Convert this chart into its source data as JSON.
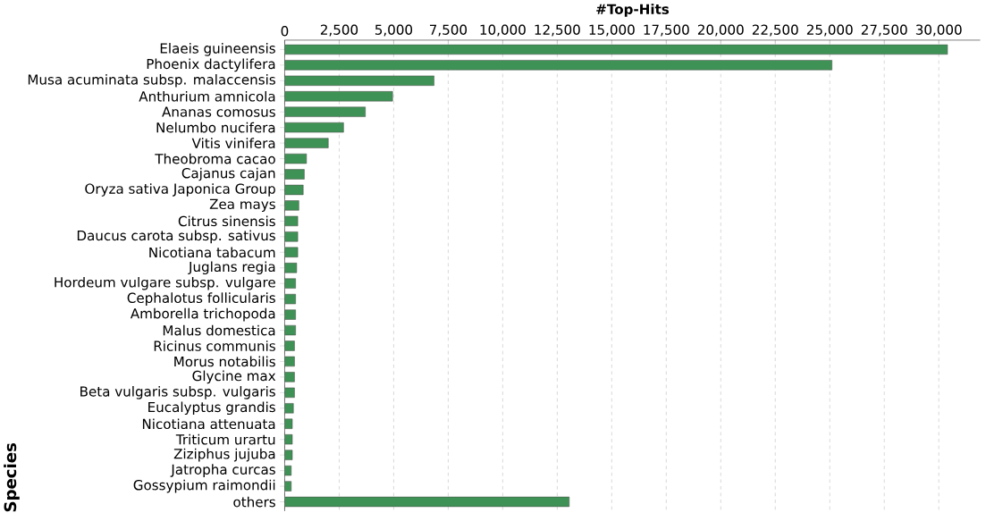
{
  "chart_data": {
    "type": "bar",
    "orientation": "horizontal",
    "xlabel": "#Top-Hits",
    "ylabel": "Species",
    "categories": [
      "Elaeis guineensis",
      "Phoenix dactylifera",
      "Musa acuminata subsp. malaccensis",
      "Anthurium amnicola",
      "Ananas comosus",
      "Nelumbo nucifera",
      "Vitis vinifera",
      "Theobroma cacao",
      "Cajanus cajan",
      "Oryza sativa Japonica Group",
      "Zea mays",
      "Citrus sinensis",
      "Daucus carota subsp. sativus",
      "Nicotiana tabacum",
      "Juglans regia",
      "Hordeum vulgare subsp. vulgare",
      "Cephalotus follicularis",
      "Amborella trichopoda",
      "Malus domestica",
      "Ricinus communis",
      "Morus notabilis",
      "Glycine max",
      "Beta vulgaris subsp. vulgaris",
      "Eucalyptus grandis",
      "Nicotiana attenuata",
      "Triticum urartu",
      "Ziziphus jujuba",
      "Jatropha curcas",
      "Gossypium raimondii",
      "others"
    ],
    "values": [
      30400,
      25100,
      6850,
      4950,
      3700,
      2700,
      2000,
      1000,
      900,
      850,
      650,
      600,
      600,
      600,
      550,
      500,
      500,
      500,
      500,
      450,
      450,
      450,
      450,
      400,
      350,
      350,
      350,
      300,
      300,
      13050
    ],
    "color": "#3f9255",
    "xlim": [
      0,
      31900
    ],
    "xticks": [
      0,
      {
        "value": 2500,
        "label": "2,500"
      },
      {
        "value": 5000,
        "label": "5,000"
      },
      {
        "value": 7500,
        "label": "7,500"
      },
      {
        "value": 10000,
        "label": "10,000"
      },
      {
        "value": 12500,
        "label": "12,500"
      },
      {
        "value": 15000,
        "label": "15,000"
      },
      {
        "value": 17500,
        "label": "17,500"
      },
      {
        "value": 20000,
        "label": "20,000"
      },
      {
        "value": 22500,
        "label": "22,500"
      },
      {
        "value": 25000,
        "label": "25,000"
      },
      {
        "value": 27500,
        "label": "27,500"
      },
      {
        "value": 30000,
        "label": "30,000"
      }
    ],
    "grid": "x"
  }
}
